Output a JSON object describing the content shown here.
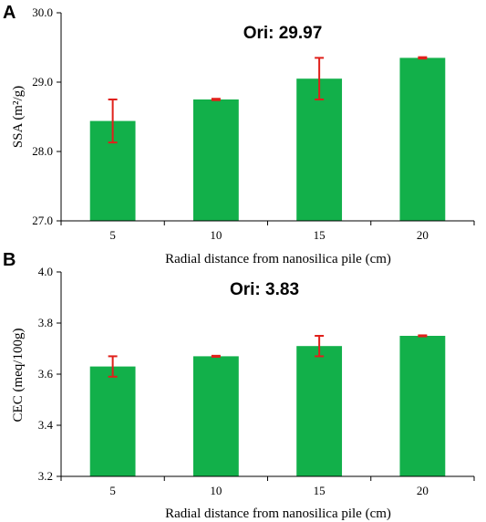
{
  "chart_data": [
    {
      "type": "bar",
      "panel_label": "A",
      "annotation": "Ori: 29.97",
      "categories": [
        "5",
        "10",
        "15",
        "20"
      ],
      "values": [
        28.44,
        28.75,
        29.05,
        29.35
      ],
      "error": [
        0.31,
        0.01,
        0.3,
        0.01
      ],
      "ylim": [
        27.0,
        30.0
      ],
      "yticks": [
        "27.0",
        "28.0",
        "29.0",
        "30.0"
      ],
      "xlabel": "Radial distance from nanosilica pile (cm)",
      "ylabel": "SSA (m²/g)",
      "bar_color": "#12b04a",
      "error_color": "#e0201b",
      "grid": false
    },
    {
      "type": "bar",
      "panel_label": "B",
      "annotation": "Ori: 3.83",
      "categories": [
        "5",
        "10",
        "15",
        "20"
      ],
      "values": [
        3.63,
        3.67,
        3.71,
        3.75
      ],
      "error": [
        0.04,
        0.002,
        0.04,
        0.002
      ],
      "ylim": [
        3.2,
        4.0
      ],
      "yticks": [
        "3.2",
        "3.4",
        "3.6",
        "3.8",
        "4.0"
      ],
      "xlabel": "Radial distance from nanosilica pile (cm)",
      "ylabel": "CEC (meq/100g)",
      "bar_color": "#12b04a",
      "error_color": "#e0201b",
      "grid": false
    }
  ]
}
